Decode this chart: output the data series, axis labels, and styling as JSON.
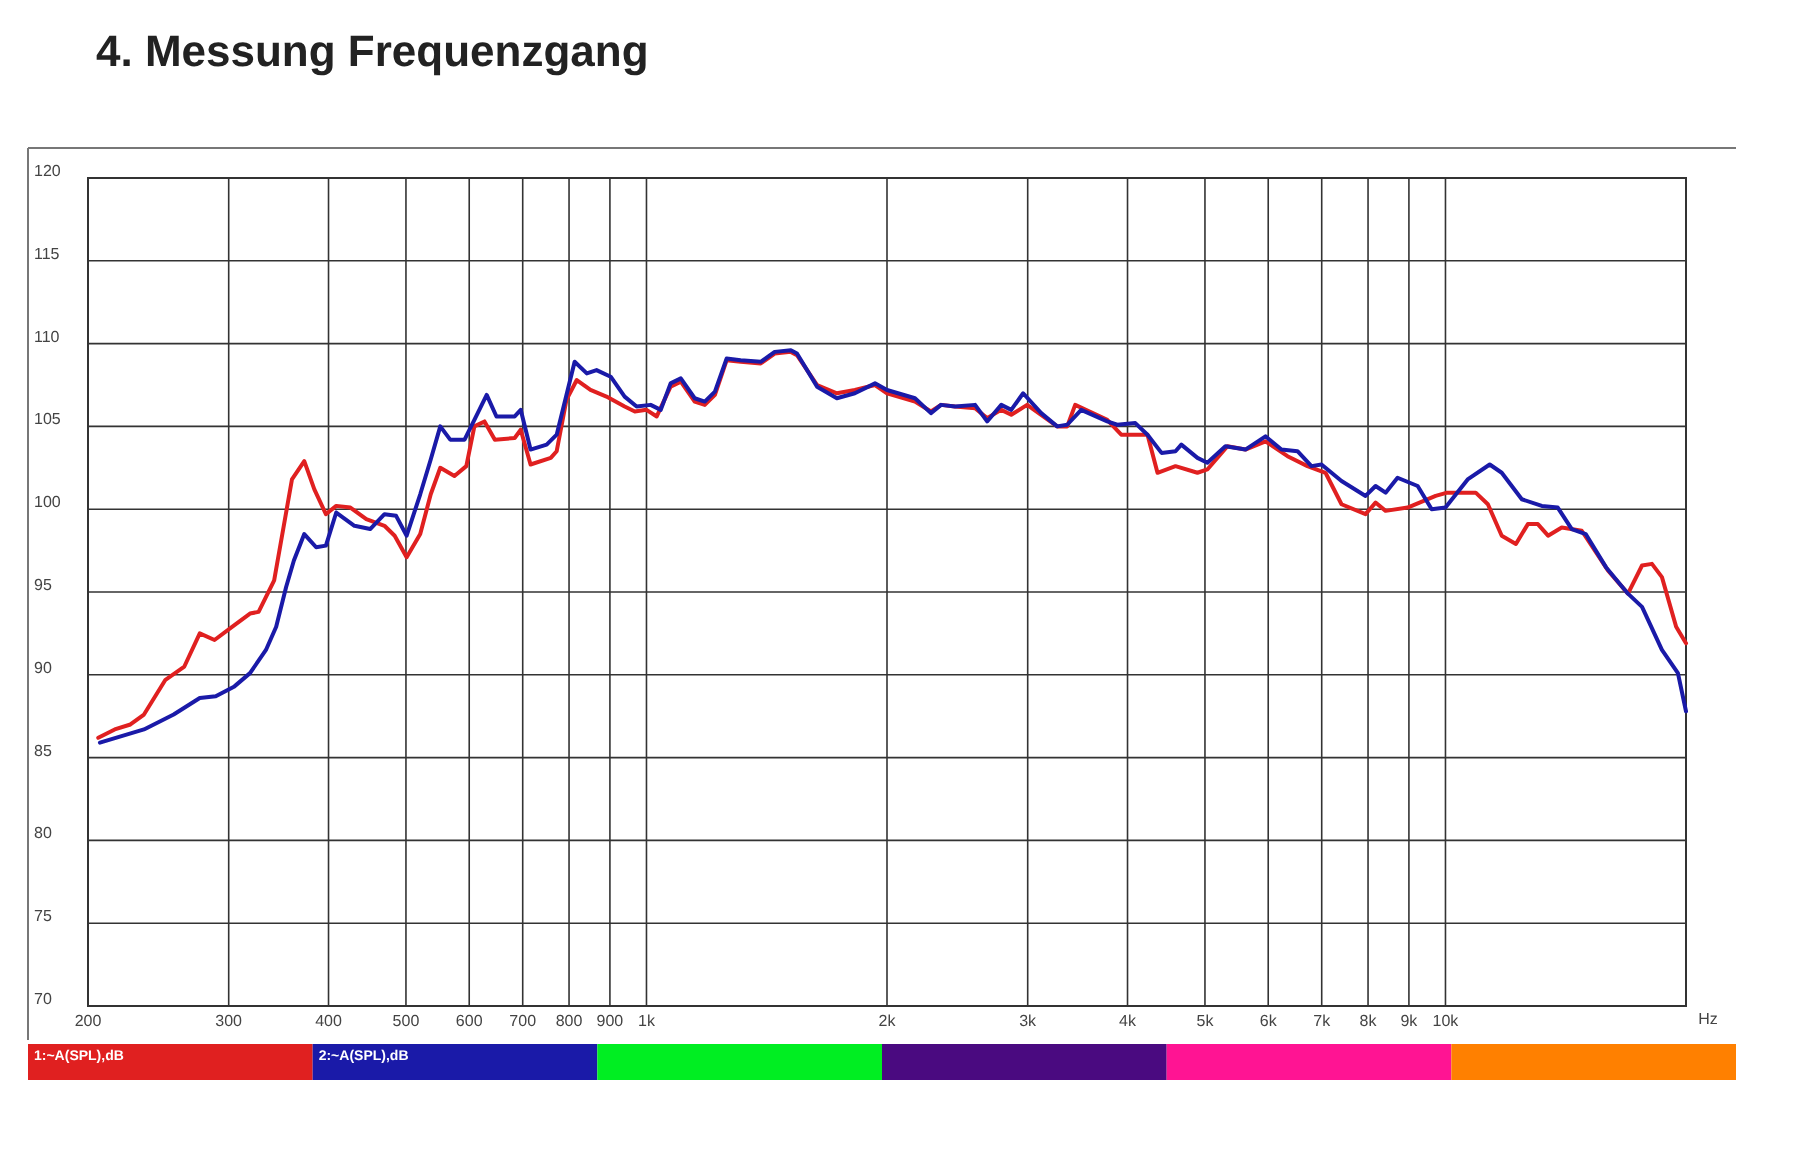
{
  "chart_data": {
    "type": "line",
    "title": "4.  Messung Frequenzgang",
    "xlabel": "Hz",
    "log": "x",
    "xlim": [
      200,
      20000
    ],
    "ylim": [
      70,
      120
    ],
    "xticks": [
      200,
      300,
      400,
      500,
      600,
      700,
      800,
      900,
      {
        "value": 1000,
        "label": "1k"
      },
      {
        "value": 2000,
        "label": "2k"
      },
      {
        "value": 3000,
        "label": "3k"
      },
      {
        "value": 4000,
        "label": "4k"
      },
      {
        "value": 5000,
        "label": "5k"
      },
      {
        "value": 6000,
        "label": "6k"
      },
      {
        "value": 7000,
        "label": "7k"
      },
      {
        "value": 8000,
        "label": "8k"
      },
      {
        "value": 9000,
        "label": "9k"
      },
      {
        "value": 10000,
        "label": "10k"
      }
    ],
    "yticks": [
      70,
      75,
      80,
      85,
      90,
      95,
      100,
      105,
      110,
      115,
      120
    ],
    "grid": true,
    "legend": "bottom",
    "marker": "none",
    "line_style": "solid",
    "series": [
      {
        "name": "1:~A(SPL),dB",
        "color": "#e02020",
        "x": [
          206,
          216,
          226,
          235,
          250,
          264,
          276,
          288,
          305,
          319,
          327,
          342,
          360,
          373,
          384,
          397,
          409,
          426,
          446,
          470,
          484,
          501,
          521,
          537,
          552,
          575,
          595,
          609,
          627,
          646,
          684,
          696,
          716,
          759,
          772,
          794,
          818,
          851,
          891,
          939,
          967,
          1000,
          1030,
          1072,
          1104,
          1149,
          1183,
          1218,
          1260,
          1312,
          1390,
          1447,
          1516,
          1543,
          1635,
          1731,
          1823,
          1932,
          2000,
          2168,
          2270,
          2337,
          2433,
          2578,
          2669,
          2780,
          2861,
          2995,
          3266,
          3362,
          3440,
          3773,
          3928,
          4237,
          4361,
          4593,
          4893,
          5035,
          5335,
          5618,
          5953,
          6343,
          6718,
          7077,
          7411,
          7943,
          8175,
          8415,
          8966,
          9721,
          10050,
          10910,
          11300,
          11760,
          12250,
          12680,
          13050,
          13440,
          13980,
          14810,
          15970,
          16920,
          17620,
          18130,
          18660,
          19440,
          20000
        ],
        "values": [
          86.2,
          86.7,
          87.0,
          87.6,
          89.7,
          90.5,
          92.5,
          92.1,
          93.0,
          93.7,
          93.8,
          95.7,
          101.8,
          102.9,
          101.2,
          99.7,
          100.2,
          100.1,
          99.4,
          99.0,
          98.4,
          97.1,
          98.5,
          100.9,
          102.5,
          102.0,
          102.6,
          105.0,
          105.3,
          104.2,
          104.3,
          104.8,
          102.7,
          103.1,
          103.5,
          106.6,
          107.8,
          107.2,
          106.8,
          106.2,
          105.9,
          106.0,
          105.6,
          107.4,
          107.7,
          106.5,
          106.3,
          106.9,
          109.0,
          108.9,
          108.8,
          109.4,
          109.5,
          109.3,
          107.5,
          107.0,
          107.2,
          107.5,
          107.0,
          106.5,
          105.9,
          106.3,
          106.2,
          106.1,
          105.5,
          106.0,
          105.7,
          106.3,
          105.0,
          105.0,
          106.3,
          105.4,
          104.5,
          104.5,
          102.2,
          102.6,
          102.2,
          102.4,
          103.8,
          103.6,
          104.1,
          103.2,
          102.6,
          102.2,
          100.3,
          99.7,
          100.4,
          99.9,
          100.1,
          100.8,
          101.0,
          101.0,
          100.3,
          98.4,
          97.9,
          99.1,
          99.1,
          98.4,
          98.9,
          98.7,
          96.3,
          94.9,
          96.6,
          96.7,
          95.9,
          92.9,
          91.9
        ]
      },
      {
        "name": "2:~A(SPL),dB",
        "color": "#1a1aa8",
        "x": [
          207,
          235,
          256,
          276,
          289,
          305,
          319,
          334,
          344,
          354,
          362,
          373,
          386,
          397,
          409,
          431,
          451,
          470,
          486,
          501,
          521,
          537,
          552,
          568,
          592,
          609,
          631,
          649,
          684,
          696,
          716,
          750,
          772,
          813,
          842,
          866,
          902,
          939,
          972,
          1012,
          1042,
          1072,
          1104,
          1149,
          1183,
          1218,
          1260,
          1312,
          1390,
          1447,
          1516,
          1543,
          1635,
          1731,
          1823,
          1932,
          2000,
          2168,
          2270,
          2337,
          2433,
          2578,
          2669,
          2780,
          2861,
          2961,
          3119,
          3266,
          3362,
          3500,
          3773,
          3883,
          4091,
          4237,
          4412,
          4593,
          4671,
          4893,
          5035,
          5304,
          5618,
          5953,
          6233,
          6528,
          6796,
          6996,
          7411,
          7943,
          8175,
          8415,
          8710,
          9230,
          9610,
          10000,
          10660,
          11360,
          11760,
          12460,
          13200,
          13820,
          14390,
          14980,
          15880,
          16920,
          17620,
          18660,
          19540,
          20000
        ],
        "values": [
          85.9,
          86.7,
          87.6,
          88.6,
          88.7,
          89.3,
          90.1,
          91.5,
          92.9,
          95.3,
          96.9,
          98.5,
          97.7,
          97.8,
          99.8,
          99.0,
          98.8,
          99.7,
          99.6,
          98.4,
          100.9,
          103.0,
          105.0,
          104.2,
          104.2,
          105.4,
          106.9,
          105.6,
          105.6,
          106.0,
          103.6,
          103.9,
          104.5,
          108.9,
          108.2,
          108.4,
          108.0,
          106.8,
          106.2,
          106.3,
          106.0,
          107.6,
          107.9,
          106.7,
          106.5,
          107.1,
          109.1,
          109.0,
          108.9,
          109.5,
          109.6,
          109.4,
          107.4,
          106.7,
          107.0,
          107.6,
          107.2,
          106.7,
          105.8,
          106.3,
          106.2,
          106.3,
          105.3,
          106.3,
          106.0,
          107.0,
          105.8,
          105.0,
          105.1,
          106.0,
          105.3,
          105.1,
          105.2,
          104.5,
          103.4,
          103.5,
          103.9,
          103.1,
          102.8,
          103.8,
          103.6,
          104.4,
          103.6,
          103.5,
          102.6,
          102.7,
          101.7,
          100.8,
          101.4,
          101.0,
          101.9,
          101.4,
          100.0,
          100.1,
          101.8,
          102.7,
          102.2,
          100.6,
          100.2,
          100.1,
          98.8,
          98.5,
          96.5,
          94.9,
          94.1,
          91.5,
          90.1,
          87.8
        ]
      }
    ]
  }
}
